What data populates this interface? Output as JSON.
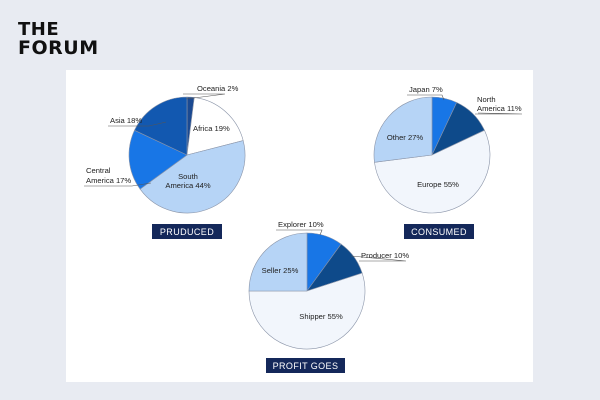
{
  "brand": {
    "line1": "THE",
    "line2": "FORUM"
  },
  "colors": {
    "background": "#e8ebf2",
    "card": "#ffffff",
    "tag": "#14285a",
    "outline": "#8a94a8"
  },
  "chart_data": [
    {
      "type": "pie",
      "title": "PRUDUCED",
      "categories": [
        "Oceania",
        "Africa",
        "South America",
        "Central America",
        "Asia"
      ],
      "values": [
        2,
        19,
        44,
        17,
        18
      ],
      "labels": [
        "Oceania 2%",
        "Africa 19%",
        "South America 44%",
        "Central America 17%",
        "Asia 18%"
      ],
      "colors": [
        "#1b4a92",
        "#ffffff",
        "#b6d4f6",
        "#1876e6",
        "#1258b0"
      ]
    },
    {
      "type": "pie",
      "title": "CONSUMED",
      "categories": [
        "Japan",
        "North America",
        "Europe",
        "Other"
      ],
      "values": [
        7,
        11,
        55,
        27
      ],
      "labels": [
        "Japan 7%",
        "North America 11%",
        "Europe 55%",
        "Other 27%"
      ],
      "colors": [
        "#1876e6",
        "#0e4a8a",
        "#f2f6fc",
        "#b6d4f6"
      ]
    },
    {
      "type": "pie",
      "title": "PROFIT GOES",
      "categories": [
        "Explorer",
        "Producer",
        "Shipper",
        "Seller"
      ],
      "values": [
        10,
        10,
        55,
        25
      ],
      "labels": [
        "Explorer 10%",
        "Producer 10%",
        "Shipper 55%",
        "Seller 25%"
      ],
      "colors": [
        "#1876e6",
        "#0e4a8a",
        "#f2f6fc",
        "#b6d4f6"
      ]
    }
  ]
}
